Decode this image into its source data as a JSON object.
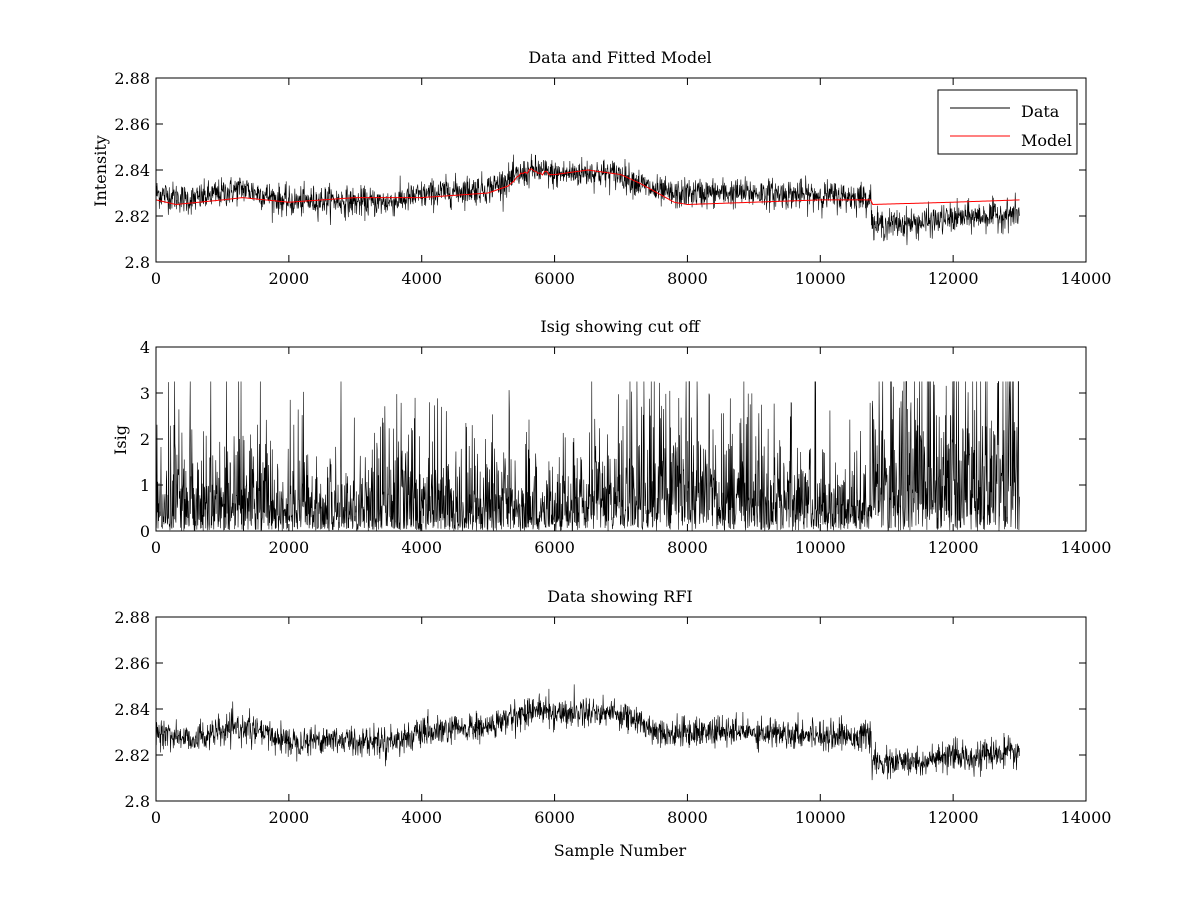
{
  "chart_data": [
    {
      "type": "line",
      "title": "Data and Fitted Model",
      "xlabel": "",
      "ylabel": "Intensity",
      "xlim": [
        0,
        14000
      ],
      "ylim": [
        2.8,
        2.88
      ],
      "xticks": [
        "0",
        "2000",
        "4000",
        "6000",
        "8000",
        "10000",
        "12000",
        "14000"
      ],
      "yticks": [
        "2.8",
        "2.82",
        "2.84",
        "2.86",
        "2.88"
      ],
      "legend": {
        "placement": "top-right",
        "entries": [
          "Data",
          "Model"
        ]
      },
      "series": [
        {
          "name": "Data",
          "color": "#000000",
          "style": "noisy",
          "noise": 0.0032,
          "x": [
            0,
            500,
            1000,
            1300,
            2000,
            2600,
            3000,
            3500,
            4000,
            4500,
            5000,
            5500,
            5700,
            6000,
            6500,
            7000,
            7500,
            7800,
            8000,
            9000,
            10000,
            10770,
            10780,
            11500,
            12000,
            13000
          ],
          "y": [
            2.83,
            2.827,
            2.83,
            2.832,
            2.826,
            2.827,
            2.826,
            2.826,
            2.829,
            2.831,
            2.832,
            2.838,
            2.84,
            2.838,
            2.839,
            2.838,
            2.831,
            2.829,
            2.83,
            2.83,
            2.829,
            2.828,
            2.816,
            2.817,
            2.819,
            2.821
          ]
        },
        {
          "name": "Model",
          "color": "#ff0000",
          "style": "smooth",
          "x": [
            0,
            300,
            1000,
            1300,
            2000,
            3000,
            4000,
            5000,
            5300,
            5500,
            5650,
            5800,
            6000,
            6500,
            7000,
            7300,
            7800,
            8000,
            9000,
            10000,
            10770,
            10780,
            12000,
            13000
          ],
          "y": [
            2.827,
            2.825,
            2.827,
            2.828,
            2.826,
            2.828,
            2.828,
            2.83,
            2.833,
            2.838,
            2.84,
            2.838,
            2.838,
            2.84,
            2.838,
            2.834,
            2.826,
            2.825,
            2.826,
            2.827,
            2.827,
            2.825,
            2.826,
            2.827
          ]
        }
      ]
    },
    {
      "type": "line",
      "title": "Isig showing cut off",
      "xlabel": "",
      "ylabel": "Isig",
      "xlim": [
        0,
        14000
      ],
      "ylim": [
        0,
        4
      ],
      "xticks": [
        "0",
        "2000",
        "4000",
        "6000",
        "8000",
        "10000",
        "12000",
        "14000"
      ],
      "yticks": [
        "0",
        "1",
        "2",
        "3",
        "4"
      ],
      "series": [
        {
          "name": "Isig",
          "color": "#000000",
          "style": "spiky",
          "x": [
            0,
            1000,
            2000,
            3000,
            4000,
            5000,
            6000,
            7000,
            7200,
            8000,
            9000,
            10000,
            10770,
            10780,
            12000,
            13000
          ],
          "y": [
            0.75,
            0.75,
            0.6,
            0.7,
            0.65,
            0.7,
            0.6,
            0.7,
            1.0,
            1.0,
            0.85,
            0.65,
            0.65,
            1.55,
            1.45,
            1.4
          ]
        }
      ]
    },
    {
      "type": "line",
      "title": "Data showing RFI",
      "xlabel": "Sample Number",
      "ylabel": "",
      "xlim": [
        0,
        14000
      ],
      "ylim": [
        2.8,
        2.88
      ],
      "xticks": [
        "0",
        "2000",
        "4000",
        "6000",
        "8000",
        "10000",
        "12000",
        "14000"
      ],
      "yticks": [
        "2.8",
        "2.82",
        "2.84",
        "2.86",
        "2.88"
      ],
      "series": [
        {
          "name": "Data",
          "color": "#000000",
          "style": "noisy",
          "noise": 0.0032,
          "x": [
            0,
            500,
            1000,
            1300,
            2000,
            2600,
            3000,
            3500,
            4000,
            4500,
            5000,
            5500,
            5700,
            6000,
            6500,
            7000,
            7500,
            7800,
            8000,
            9000,
            10000,
            10770,
            10780,
            11500,
            12000,
            13000
          ],
          "y": [
            2.83,
            2.827,
            2.83,
            2.832,
            2.826,
            2.827,
            2.826,
            2.826,
            2.829,
            2.831,
            2.832,
            2.838,
            2.84,
            2.838,
            2.839,
            2.838,
            2.831,
            2.829,
            2.83,
            2.83,
            2.829,
            2.828,
            2.816,
            2.817,
            2.819,
            2.821
          ]
        }
      ]
    }
  ]
}
